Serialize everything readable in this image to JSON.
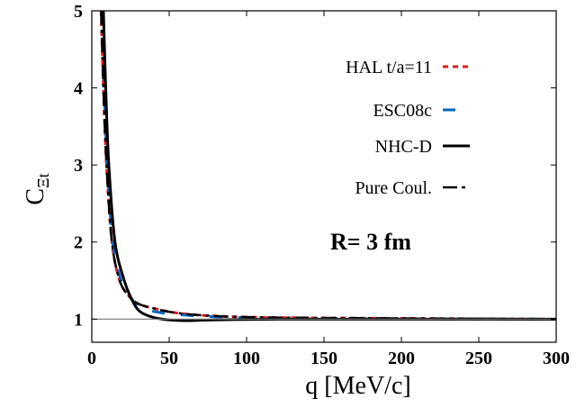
{
  "chart_data": {
    "type": "line",
    "xlabel": "q [MeV/c]",
    "ylabel_main": "C",
    "ylabel_sub": "Ξt",
    "annotation": "R= 3 fm",
    "xlim": [
      0,
      300
    ],
    "ylim": [
      0.7,
      5
    ],
    "xticks": [
      0,
      50,
      100,
      150,
      200,
      250,
      300
    ],
    "yticks": [
      1,
      2,
      3,
      4,
      5
    ],
    "grid": false,
    "legend_position": "top-right",
    "reference_line": 1,
    "series": [
      {
        "name": "HAL t/a=11",
        "color": "#e41a1c",
        "style": "dotted",
        "x": [
          6,
          7.5,
          9.5,
          13,
          18,
          24,
          30,
          40,
          55,
          80,
          120,
          200,
          300
        ],
        "y": [
          5,
          4,
          3,
          2,
          1.5,
          1.3,
          1.2,
          1.14,
          1.08,
          1.04,
          1.02,
          1.01,
          1.0
        ]
      },
      {
        "name": "ESC08c",
        "color": "#0066bb",
        "style": "dashed",
        "x": [
          6.5,
          8,
          10,
          13.5,
          19,
          25,
          32,
          40,
          55,
          80,
          120,
          200,
          300
        ],
        "y": [
          5,
          4,
          3,
          2,
          1.5,
          1.28,
          1.15,
          1.1,
          1.06,
          1.03,
          1.015,
          1.005,
          1.0
        ]
      },
      {
        "name": "NHC-D",
        "color": "#000000",
        "style": "solid",
        "x": [
          7.5,
          9,
          11,
          15,
          21,
          26,
          31,
          40,
          50,
          60,
          80,
          120,
          200,
          300
        ],
        "y": [
          5,
          4,
          3,
          2,
          1.5,
          1.25,
          1.1,
          1.02,
          0.99,
          0.98,
          0.99,
          1.0,
          1.0,
          1.0
        ]
      },
      {
        "name": "Pure Coul.",
        "color": "#000000",
        "style": "dash-dot",
        "x": [
          6,
          7.5,
          9.5,
          13,
          18,
          24,
          30,
          40,
          55,
          80,
          120,
          200,
          300
        ],
        "y": [
          5,
          4,
          3,
          2,
          1.5,
          1.3,
          1.2,
          1.14,
          1.08,
          1.04,
          1.02,
          1.01,
          1.0
        ]
      }
    ]
  }
}
